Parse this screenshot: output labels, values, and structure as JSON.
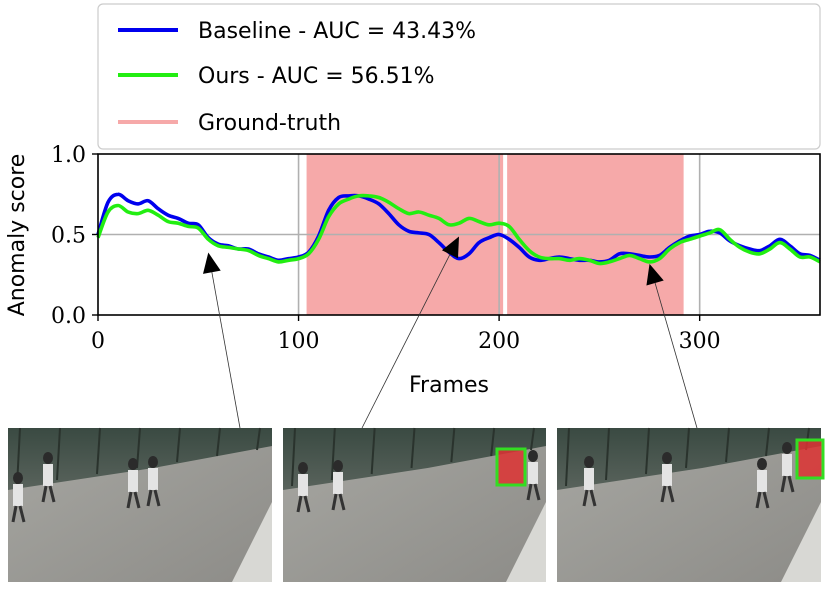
{
  "chart_data": {
    "type": "line",
    "xlabel": "Frames",
    "ylabel": "Anomaly score",
    "xlim": [
      0,
      360
    ],
    "ylim": [
      0.0,
      1.0
    ],
    "xticks": [
      "0",
      "100",
      "200",
      "300"
    ],
    "yticks": [
      "0.0",
      "0.5",
      "1.0"
    ],
    "grid": true,
    "legend_position": "top",
    "series": [
      {
        "name": "Baseline - AUC = 43.43%",
        "color": "#0000ee",
        "x": [
          0,
          5,
          10,
          15,
          20,
          25,
          30,
          35,
          40,
          45,
          50,
          55,
          60,
          65,
          70,
          75,
          80,
          85,
          90,
          95,
          100,
          105,
          110,
          115,
          120,
          125,
          130,
          135,
          140,
          145,
          150,
          155,
          160,
          165,
          170,
          175,
          180,
          185,
          190,
          195,
          200,
          205,
          210,
          215,
          220,
          225,
          230,
          235,
          240,
          245,
          250,
          255,
          260,
          265,
          270,
          275,
          280,
          285,
          290,
          295,
          300,
          305,
          310,
          315,
          320,
          325,
          330,
          335,
          340,
          345,
          350,
          355,
          360
        ],
        "values": [
          0.5,
          0.7,
          0.75,
          0.71,
          0.69,
          0.71,
          0.66,
          0.62,
          0.6,
          0.57,
          0.56,
          0.48,
          0.44,
          0.43,
          0.41,
          0.41,
          0.38,
          0.36,
          0.34,
          0.35,
          0.36,
          0.39,
          0.49,
          0.65,
          0.73,
          0.74,
          0.74,
          0.72,
          0.69,
          0.63,
          0.56,
          0.52,
          0.51,
          0.5,
          0.45,
          0.39,
          0.35,
          0.38,
          0.45,
          0.48,
          0.5,
          0.47,
          0.42,
          0.36,
          0.34,
          0.35,
          0.36,
          0.35,
          0.34,
          0.34,
          0.33,
          0.34,
          0.38,
          0.38,
          0.37,
          0.36,
          0.37,
          0.42,
          0.46,
          0.49,
          0.5,
          0.52,
          0.51,
          0.46,
          0.43,
          0.41,
          0.4,
          0.43,
          0.47,
          0.43,
          0.38,
          0.37,
          0.34
        ]
      },
      {
        "name": "Ours - AUC = 56.51%",
        "color": "#22ee11",
        "x": [
          0,
          5,
          10,
          15,
          20,
          25,
          30,
          35,
          40,
          45,
          50,
          55,
          60,
          65,
          70,
          75,
          80,
          85,
          90,
          95,
          100,
          105,
          110,
          115,
          120,
          125,
          130,
          135,
          140,
          145,
          150,
          155,
          160,
          165,
          170,
          175,
          180,
          185,
          190,
          195,
          200,
          205,
          210,
          215,
          220,
          225,
          230,
          235,
          240,
          245,
          250,
          255,
          260,
          265,
          270,
          275,
          280,
          285,
          290,
          295,
          300,
          305,
          310,
          315,
          320,
          325,
          330,
          335,
          340,
          345,
          350,
          355,
          360
        ],
        "values": [
          0.48,
          0.64,
          0.68,
          0.64,
          0.63,
          0.65,
          0.62,
          0.58,
          0.57,
          0.55,
          0.54,
          0.47,
          0.43,
          0.42,
          0.41,
          0.4,
          0.37,
          0.35,
          0.33,
          0.34,
          0.35,
          0.38,
          0.47,
          0.61,
          0.69,
          0.72,
          0.74,
          0.74,
          0.73,
          0.7,
          0.66,
          0.63,
          0.64,
          0.62,
          0.6,
          0.56,
          0.57,
          0.6,
          0.58,
          0.56,
          0.57,
          0.55,
          0.47,
          0.4,
          0.36,
          0.35,
          0.35,
          0.34,
          0.35,
          0.34,
          0.32,
          0.33,
          0.35,
          0.37,
          0.35,
          0.33,
          0.35,
          0.41,
          0.45,
          0.47,
          0.49,
          0.51,
          0.53,
          0.47,
          0.42,
          0.39,
          0.38,
          0.41,
          0.45,
          0.41,
          0.36,
          0.36,
          0.33
        ]
      }
    ],
    "ground_truth": {
      "name": "Ground-truth",
      "color": "#f6a9a9",
      "spans": [
        [
          104,
          202
        ],
        [
          204,
          292
        ]
      ]
    },
    "annotations": [
      {
        "target_frame": 55,
        "target_score": 0.45,
        "thumbnail": 0
      },
      {
        "target_frame": 180,
        "target_score": 0.55,
        "thumbnail": 1
      },
      {
        "target_frame": 275,
        "target_score": 0.38,
        "thumbnail": 2
      }
    ]
  },
  "thumbnails": [
    {
      "anomaly_box": false
    },
    {
      "anomaly_box": true
    },
    {
      "anomaly_box": true
    }
  ]
}
